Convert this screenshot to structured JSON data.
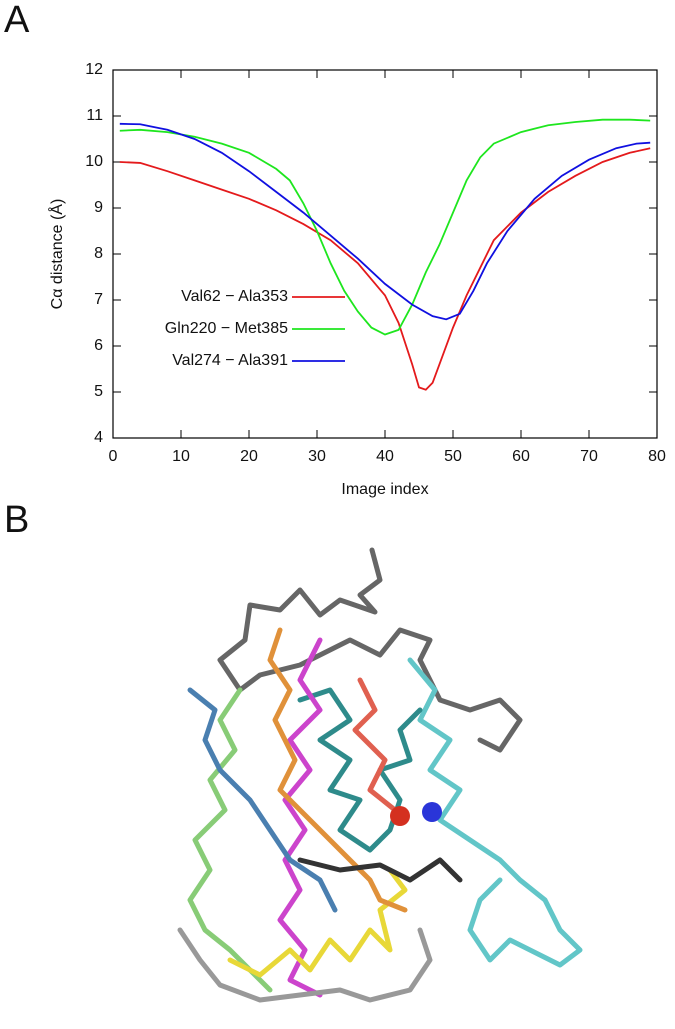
{
  "panel_labels": [
    "A",
    "B"
  ],
  "chart_data": {
    "type": "line",
    "x_label": "Image index",
    "y_label": "Cα distance (Å)",
    "xlim": [
      0,
      80
    ],
    "ylim": [
      4,
      12
    ],
    "xticks": [
      0,
      10,
      20,
      30,
      40,
      50,
      60,
      70,
      80
    ],
    "yticks": [
      4,
      5,
      6,
      7,
      8,
      9,
      10,
      11,
      12
    ],
    "legend": "left",
    "series": [
      {
        "name": "Val62 − Ala353",
        "color": "#e41a1c",
        "x": [
          1,
          4,
          8,
          12,
          16,
          20,
          24,
          28,
          32,
          36,
          40,
          42,
          44,
          45,
          46,
          47,
          48,
          50,
          52,
          54,
          56,
          60,
          64,
          68,
          72,
          76,
          79
        ],
        "values": [
          10.0,
          9.98,
          9.8,
          9.6,
          9.4,
          9.2,
          8.95,
          8.65,
          8.3,
          7.8,
          7.1,
          6.5,
          5.6,
          5.1,
          5.05,
          5.2,
          5.6,
          6.4,
          7.1,
          7.7,
          8.3,
          8.9,
          9.35,
          9.7,
          10.0,
          10.2,
          10.3
        ]
      },
      {
        "name": "Gln220 − Met385",
        "color": "#1ee61e",
        "x": [
          1,
          4,
          8,
          12,
          16,
          20,
          24,
          26,
          28,
          30,
          32,
          34,
          36,
          38,
          40,
          42,
          44,
          46,
          48,
          50,
          52,
          54,
          56,
          60,
          64,
          68,
          72,
          76,
          79
        ],
        "values": [
          10.68,
          10.7,
          10.65,
          10.55,
          10.4,
          10.2,
          9.85,
          9.6,
          9.1,
          8.5,
          7.8,
          7.2,
          6.75,
          6.4,
          6.25,
          6.35,
          6.9,
          7.6,
          8.2,
          8.9,
          9.6,
          10.1,
          10.4,
          10.65,
          10.8,
          10.87,
          10.92,
          10.92,
          10.9
        ]
      },
      {
        "name": "Val274 − Ala391",
        "color": "#1010e0",
        "x": [
          1,
          4,
          8,
          12,
          16,
          20,
          24,
          28,
          32,
          36,
          40,
          44,
          47,
          49,
          51,
          53,
          55,
          58,
          62,
          66,
          70,
          74,
          77,
          79
        ],
        "values": [
          10.83,
          10.82,
          10.7,
          10.5,
          10.2,
          9.8,
          9.35,
          8.9,
          8.4,
          7.9,
          7.35,
          6.9,
          6.65,
          6.58,
          6.7,
          7.2,
          7.8,
          8.5,
          9.2,
          9.7,
          10.05,
          10.3,
          10.4,
          10.42
        ]
      }
    ]
  }
}
